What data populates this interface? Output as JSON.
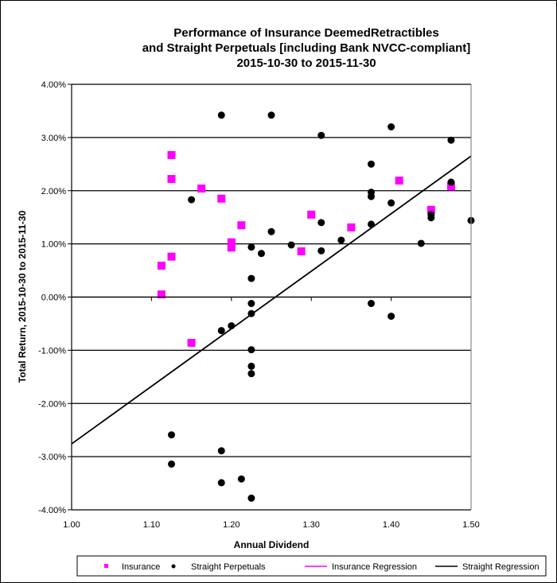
{
  "chart_data": {
    "type": "scatter",
    "title": [
      "Performance of Insurance DeemedRetractibles",
      "and Straight Perpetuals [including Bank NVCC-compliant]",
      "2015-10-30 to 2015-11-30"
    ],
    "xlabel": "Annual Dividend",
    "ylabel": "Total Return, 2015-10-30  to 2015-11-30",
    "xlim": [
      1.0,
      1.5
    ],
    "ylim": [
      -4.0,
      4.0
    ],
    "x_ticks": [
      "1.00",
      "1.10",
      "1.20",
      "1.30",
      "1.40",
      "1.50"
    ],
    "y_ticks": [
      "4.00%",
      "3.00%",
      "2.00%",
      "1.00%",
      "0.00%",
      "-1.00%",
      "-2.00%",
      "-3.00%",
      "-4.00%"
    ],
    "grid": "horizontal",
    "legend_position": "bottom",
    "series": [
      {
        "name": "Insurance",
        "marker": "square",
        "color": "#ff00ff",
        "points": [
          [
            1.1125,
            0.59
          ],
          [
            1.1125,
            0.05
          ],
          [
            1.125,
            0.76
          ],
          [
            1.125,
            2.22
          ],
          [
            1.125,
            2.67
          ],
          [
            1.15,
            -0.86
          ],
          [
            1.1625,
            2.04
          ],
          [
            1.1875,
            1.85
          ],
          [
            1.2,
            1.03
          ],
          [
            1.2,
            0.93
          ],
          [
            1.2125,
            1.35
          ],
          [
            1.2875,
            0.86
          ],
          [
            1.3,
            1.55
          ],
          [
            1.35,
            1.31
          ],
          [
            1.41,
            2.19
          ],
          [
            1.45,
            1.64
          ],
          [
            1.475,
            2.08
          ]
        ]
      },
      {
        "name": "Straight Perpetuals",
        "marker": "circle",
        "color": "#000000",
        "points": [
          [
            1.15,
            1.83
          ],
          [
            1.1875,
            3.42
          ],
          [
            1.25,
            3.42
          ],
          [
            1.225,
            0.94
          ],
          [
            1.2375,
            0.82
          ],
          [
            1.25,
            1.23
          ],
          [
            1.225,
            0.35
          ],
          [
            1.225,
            -0.12
          ],
          [
            1.225,
            -0.31
          ],
          [
            1.2,
            -0.54
          ],
          [
            1.1875,
            -0.63
          ],
          [
            1.225,
            -0.99
          ],
          [
            1.225,
            -1.3
          ],
          [
            1.225,
            -1.44
          ],
          [
            1.125,
            -2.59
          ],
          [
            1.125,
            -3.14
          ],
          [
            1.1875,
            -2.89
          ],
          [
            1.1875,
            -3.49
          ],
          [
            1.2125,
            -3.42
          ],
          [
            1.225,
            -3.78
          ],
          [
            1.275,
            0.98
          ],
          [
            1.3125,
            3.04
          ],
          [
            1.3125,
            1.4
          ],
          [
            1.3125,
            0.87
          ],
          [
            1.3375,
            1.07
          ],
          [
            1.375,
            2.5
          ],
          [
            1.375,
            1.97
          ],
          [
            1.375,
            1.89
          ],
          [
            1.375,
            1.37
          ],
          [
            1.375,
            -0.12
          ],
          [
            1.4,
            3.2
          ],
          [
            1.4,
            1.77
          ],
          [
            1.4,
            -0.36
          ],
          [
            1.4375,
            1.01
          ],
          [
            1.45,
            1.55
          ],
          [
            1.45,
            1.49
          ],
          [
            1.475,
            2.95
          ],
          [
            1.475,
            2.16
          ],
          [
            1.5,
            1.44
          ]
        ]
      },
      {
        "name": "Insurance Regression",
        "marker": "line",
        "color": "#ff00ff",
        "points": []
      },
      {
        "name": "Straight Regression",
        "marker": "line",
        "color": "#000000",
        "points": [
          [
            1.0,
            -2.76
          ],
          [
            1.5,
            2.65
          ]
        ]
      }
    ]
  }
}
